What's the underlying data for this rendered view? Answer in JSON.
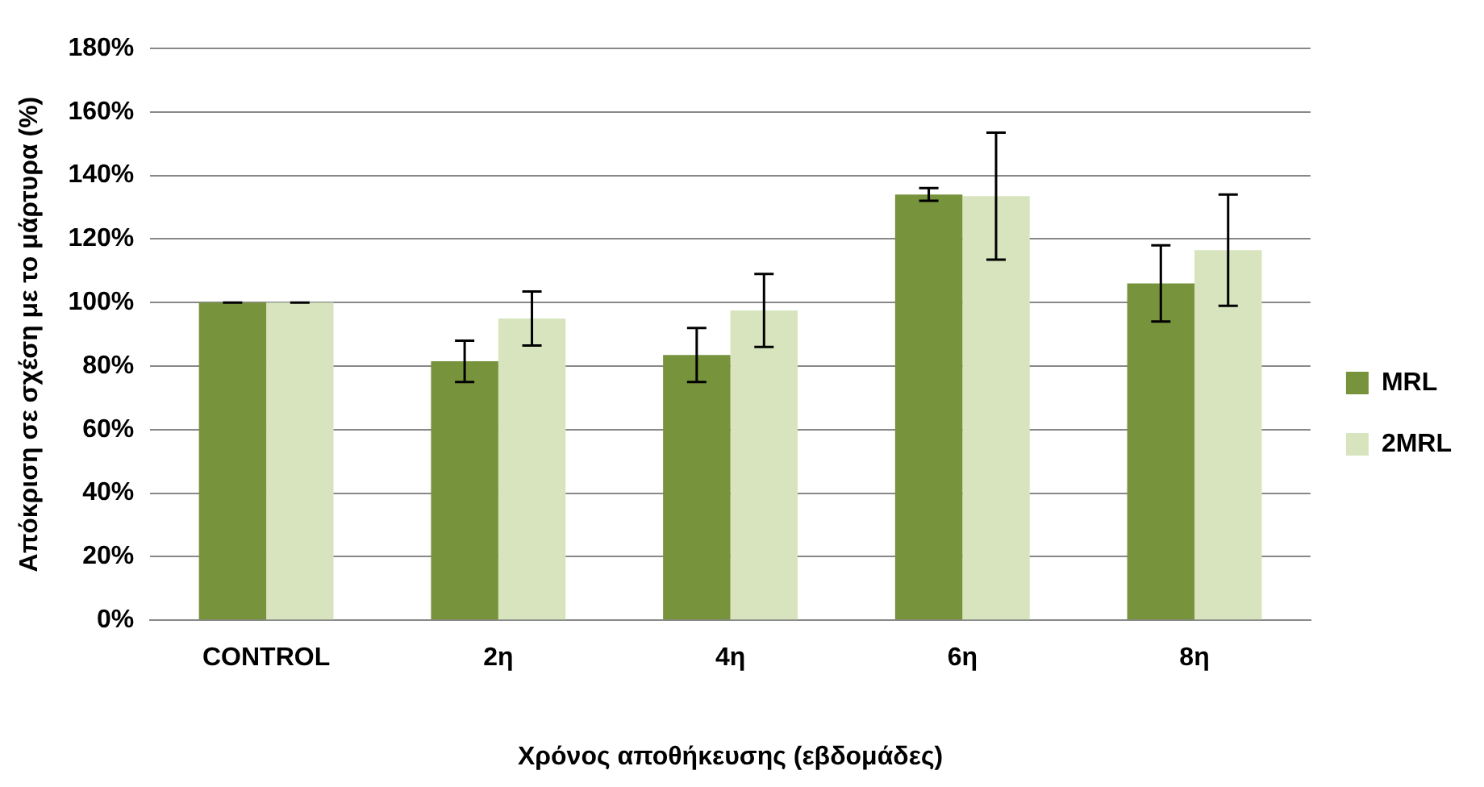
{
  "chart_data": {
    "type": "bar",
    "xlabel": "Χρόνος αποθήκευσης (εβδομάδες)",
    "ylabel": "Απόκριση σε σχέση με το μάρτυρα (%)",
    "categories": [
      "CONTROL",
      "2η",
      "4η",
      "6η",
      "8η"
    ],
    "series": [
      {
        "name": "MRL",
        "color": "#77933c",
        "values": [
          100,
          81.5,
          83.5,
          134,
          106
        ],
        "errors": [
          0,
          6.5,
          8.5,
          2,
          12
        ]
      },
      {
        "name": "2MRL",
        "color": "#d7e4bd",
        "values": [
          100,
          95,
          97.5,
          133.5,
          116.5
        ],
        "errors": [
          0,
          8.5,
          11.5,
          20,
          17.5
        ]
      }
    ],
    "ylim": [
      0,
      180
    ],
    "yticks": [
      {
        "value": 0,
        "label": "0%"
      },
      {
        "value": 20,
        "label": "20%"
      },
      {
        "value": 40,
        "label": "40%"
      },
      {
        "value": 60,
        "label": "60%"
      },
      {
        "value": 80,
        "label": "80%"
      },
      {
        "value": 100,
        "label": "100%"
      },
      {
        "value": 120,
        "label": "120%"
      },
      {
        "value": 140,
        "label": "140%"
      },
      {
        "value": 160,
        "label": "160%"
      },
      {
        "value": 180,
        "label": "180%"
      }
    ],
    "grid": "y",
    "legend": "right"
  }
}
